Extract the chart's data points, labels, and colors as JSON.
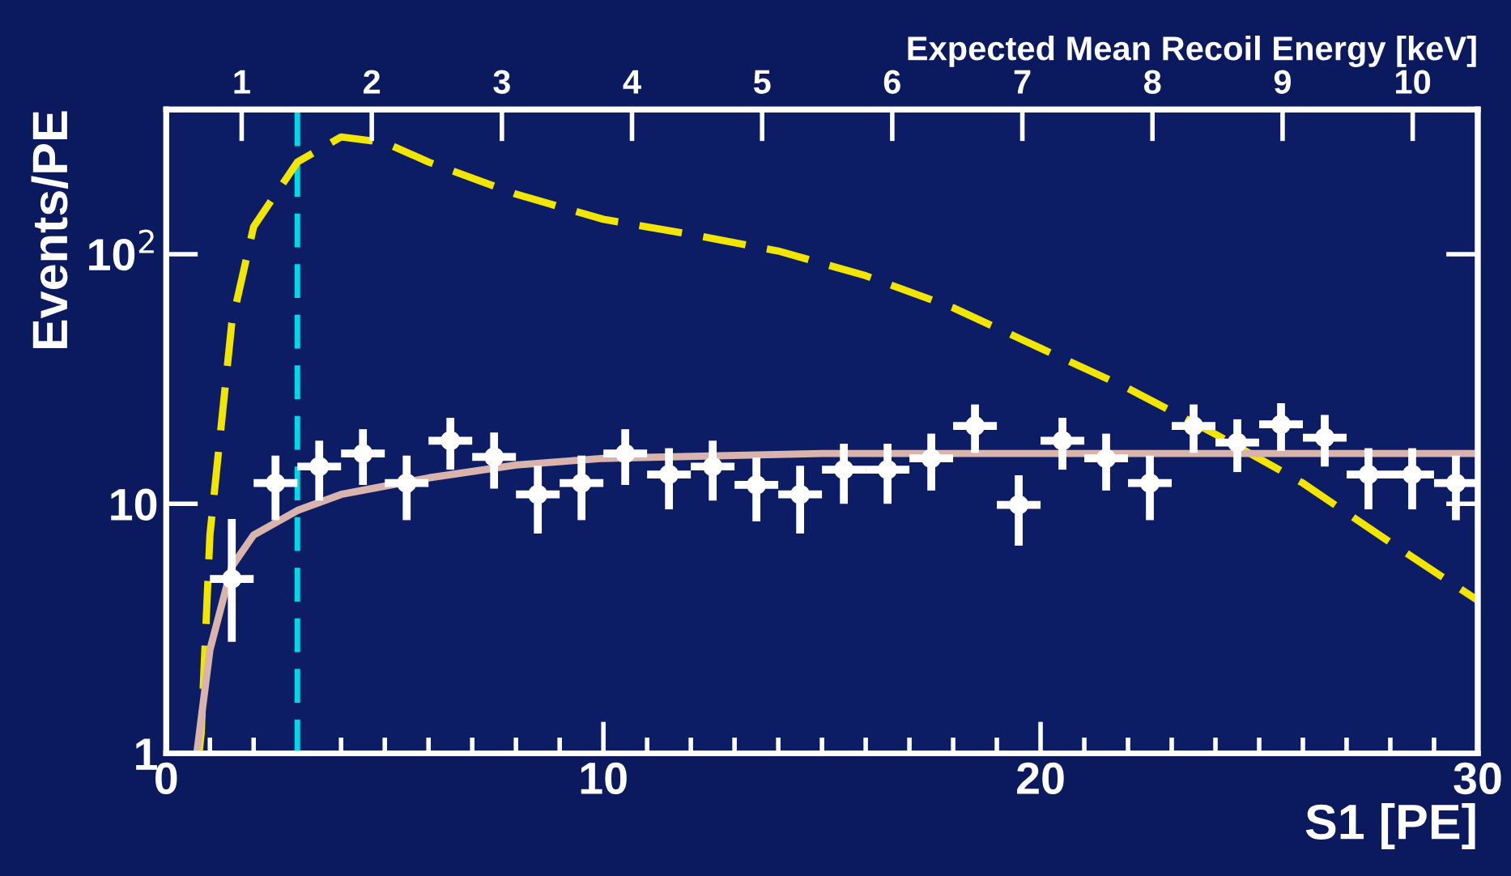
{
  "chart_data": {
    "type": "scatter",
    "xlabel": "S1 [PE]",
    "ylabel": "Events/PE",
    "x2label": "Expected Mean Recoil Energy [keV]",
    "xlim": [
      0,
      30
    ],
    "xticks": [
      0,
      10,
      20,
      30
    ],
    "ylim": [
      1,
      380
    ],
    "log": "y",
    "yticks": [
      1,
      10,
      {
        "value": 100,
        "label": "10$^{2}$"
      }
    ],
    "x2lim": [
      0.42,
      10.5
    ],
    "x2ticks": [
      1,
      2,
      3,
      4,
      5,
      6,
      7,
      8,
      9,
      10
    ],
    "grid": false,
    "marker": "none",
    "ref_lines": [
      {
        "axis": "x",
        "value": 3,
        "color": "#00d8e8",
        "line_style": "dashed"
      }
    ],
    "series": [
      {
        "type": "line",
        "color": "#f2e600",
        "line_style": "dashed",
        "x": [
          0.75,
          0.8,
          1,
          1.5,
          2,
          3,
          4,
          5,
          6,
          8,
          10,
          12,
          14,
          16,
          18,
          20,
          22,
          24,
          26,
          28,
          30
        ],
        "values": [
          1,
          1.2,
          7.5,
          53,
          129,
          234,
          295,
          280,
          234,
          174,
          138,
          120,
          103,
          82,
          61,
          42,
          29,
          19,
          12.1,
          7,
          4.1
        ]
      },
      {
        "type": "line",
        "color": "#d8b4ac",
        "line_style": "solid",
        "x": [
          0.7,
          1,
          1.5,
          2,
          3,
          4,
          6,
          8,
          10,
          15,
          30
        ],
        "values": [
          1,
          2.6,
          5.6,
          7.5,
          9.4,
          10.9,
          12.7,
          14.3,
          15.2,
          15.9,
          15.9
        ]
      },
      {
        "type": "scatter",
        "color": "#ffffff",
        "marker": "circle",
        "x": [
          1.5,
          2.5,
          3.5,
          4.5,
          5.5,
          6.5,
          7.5,
          8.5,
          9.5,
          10.5,
          11.5,
          12.5,
          13.5,
          14.5,
          15.5,
          16.5,
          17.5,
          18.5,
          19.5,
          20.5,
          21.5,
          22.5,
          23.5,
          24.5,
          25.5,
          26.5,
          27.5,
          28.5,
          29.5
        ],
        "values": [
          5,
          12.1,
          14.1,
          15.9,
          12.1,
          17.9,
          15.4,
          10.9,
          12.1,
          15.9,
          13.1,
          14.1,
          11.9,
          10.9,
          13.7,
          13.7,
          15.2,
          20.5,
          9.9,
          17.9,
          15.2,
          12.1,
          20.5,
          17.6,
          20.8,
          18.4,
          13.1,
          13.1,
          12.1
        ],
        "errors": [
          [
            2.8,
            8.7
          ],
          3.5,
          3.8,
          4,
          3.5,
          4.2,
          3.9,
          3.3,
          3.5,
          4,
          3.6,
          3.8,
          3.4,
          3.3,
          3.7,
          3.7,
          3.9,
          4.5,
          3.1,
          4.2,
          3.9,
          3.5,
          4.5,
          4.2,
          4.5,
          4.3,
          3.6,
          3.6,
          3.5
        ],
        "xerrors": [
          0.5,
          0.5,
          0.5,
          0.5,
          0.5,
          0.5,
          0.5,
          0.5,
          0.5,
          0.5,
          0.5,
          0.5,
          0.5,
          0.5,
          0.5,
          0.5,
          0.5,
          0.5,
          0.5,
          0.5,
          0.5,
          0.5,
          0.5,
          0.5,
          0.5,
          0.5,
          0.5,
          0.5,
          0.5
        ]
      }
    ]
  }
}
